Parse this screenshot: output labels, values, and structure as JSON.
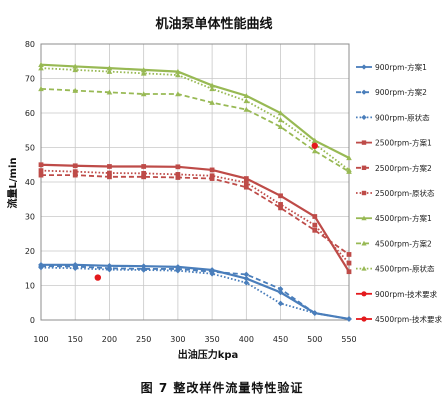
{
  "chart_data": {
    "type": "line",
    "title": "机油泵单体性能曲线",
    "xlabel": "出油压力kpa",
    "ylabel": "流量L/min",
    "caption": "图 7 整改样件流量特性验证",
    "xlim": [
      100,
      550
    ],
    "ylim": [
      0,
      80
    ],
    "xticks": [
      100,
      150,
      200,
      250,
      300,
      350,
      400,
      450,
      500,
      550
    ],
    "yticks": [
      0,
      10,
      20,
      30,
      40,
      50,
      60,
      70,
      80
    ],
    "grid": true,
    "legend_position": "right",
    "series": [
      {
        "name": "900rpm-方案1",
        "color": "#4a7ebb",
        "style": "solid",
        "marker": "diamond",
        "x": [
          100,
          150,
          200,
          250,
          300,
          350,
          400,
          450,
          500,
          550
        ],
        "y": [
          16,
          16,
          15.7,
          15.6,
          15.4,
          14.5,
          12,
          8,
          2,
          0.3
        ]
      },
      {
        "name": "900rpm-方案2",
        "color": "#4a7ebb",
        "style": "dash",
        "marker": "diamond",
        "x": [
          100,
          150,
          200,
          250,
          300,
          350,
          400,
          450,
          500,
          550
        ],
        "y": [
          15.6,
          15.5,
          15,
          14.8,
          14.8,
          14,
          13.2,
          9,
          2,
          0.3
        ]
      },
      {
        "name": "900rpm-原状态",
        "color": "#4a7ebb",
        "style": "dot",
        "marker": "diamond",
        "x": [
          100,
          150,
          200,
          250,
          300,
          350,
          400,
          450,
          500,
          550
        ],
        "y": [
          15.2,
          15,
          14.6,
          14.5,
          14.3,
          13.4,
          10.8,
          4.8,
          2,
          0.3
        ]
      },
      {
        "name": "2500rpm-方案1",
        "color": "#be4b48",
        "style": "solid",
        "marker": "square",
        "x": [
          100,
          150,
          200,
          250,
          300,
          350,
          400,
          450,
          500,
          550
        ],
        "y": [
          45,
          44.7,
          44.5,
          44.5,
          44.4,
          43.5,
          41,
          36,
          30,
          14
        ]
      },
      {
        "name": "2500rpm-方案2",
        "color": "#be4b48",
        "style": "dash",
        "marker": "square",
        "x": [
          100,
          150,
          200,
          250,
          300,
          350,
          400,
          450,
          500,
          550
        ],
        "y": [
          42,
          42,
          41.5,
          41.5,
          41.3,
          41,
          38.5,
          32.5,
          26,
          19
        ]
      },
      {
        "name": "2500rpm-原状态",
        "color": "#be4b48",
        "style": "dot",
        "marker": "square",
        "x": [
          100,
          150,
          200,
          250,
          300,
          350,
          400,
          450,
          500,
          550
        ],
        "y": [
          43.3,
          43,
          42.6,
          42.5,
          42.2,
          41.8,
          39.8,
          33.5,
          27.5,
          16.5
        ]
      },
      {
        "name": "4500rpm-方案1",
        "color": "#98b954",
        "style": "solid",
        "marker": "triangle",
        "x": [
          100,
          150,
          200,
          250,
          300,
          350,
          400,
          450,
          500,
          550
        ],
        "y": [
          74,
          73.5,
          73,
          72.5,
          72,
          68,
          65,
          60,
          52,
          47
        ]
      },
      {
        "name": "4500rpm-方案2",
        "color": "#98b954",
        "style": "dash",
        "marker": "triangle",
        "x": [
          100,
          150,
          200,
          250,
          300,
          350,
          400,
          450,
          500,
          550
        ],
        "y": [
          67,
          66.5,
          66,
          65.5,
          65.5,
          63,
          61,
          56,
          49,
          43
        ]
      },
      {
        "name": "4500rpm-原状态",
        "color": "#98b954",
        "style": "dot",
        "marker": "triangle",
        "x": [
          100,
          150,
          200,
          250,
          300,
          350,
          400,
          450,
          500,
          550
        ],
        "y": [
          73,
          72.5,
          72,
          71.5,
          71,
          67,
          63.5,
          58,
          51,
          43.5
        ]
      },
      {
        "name": "900rpm-技术要求",
        "color": "#e3191c",
        "style": "point",
        "marker": "circle",
        "x": [
          183
        ],
        "y": [
          12.3
        ]
      },
      {
        "name": "4500rpm-技术要求",
        "color": "#e3191c",
        "style": "point",
        "marker": "circle",
        "x": [
          500
        ],
        "y": [
          50.5
        ]
      }
    ]
  }
}
